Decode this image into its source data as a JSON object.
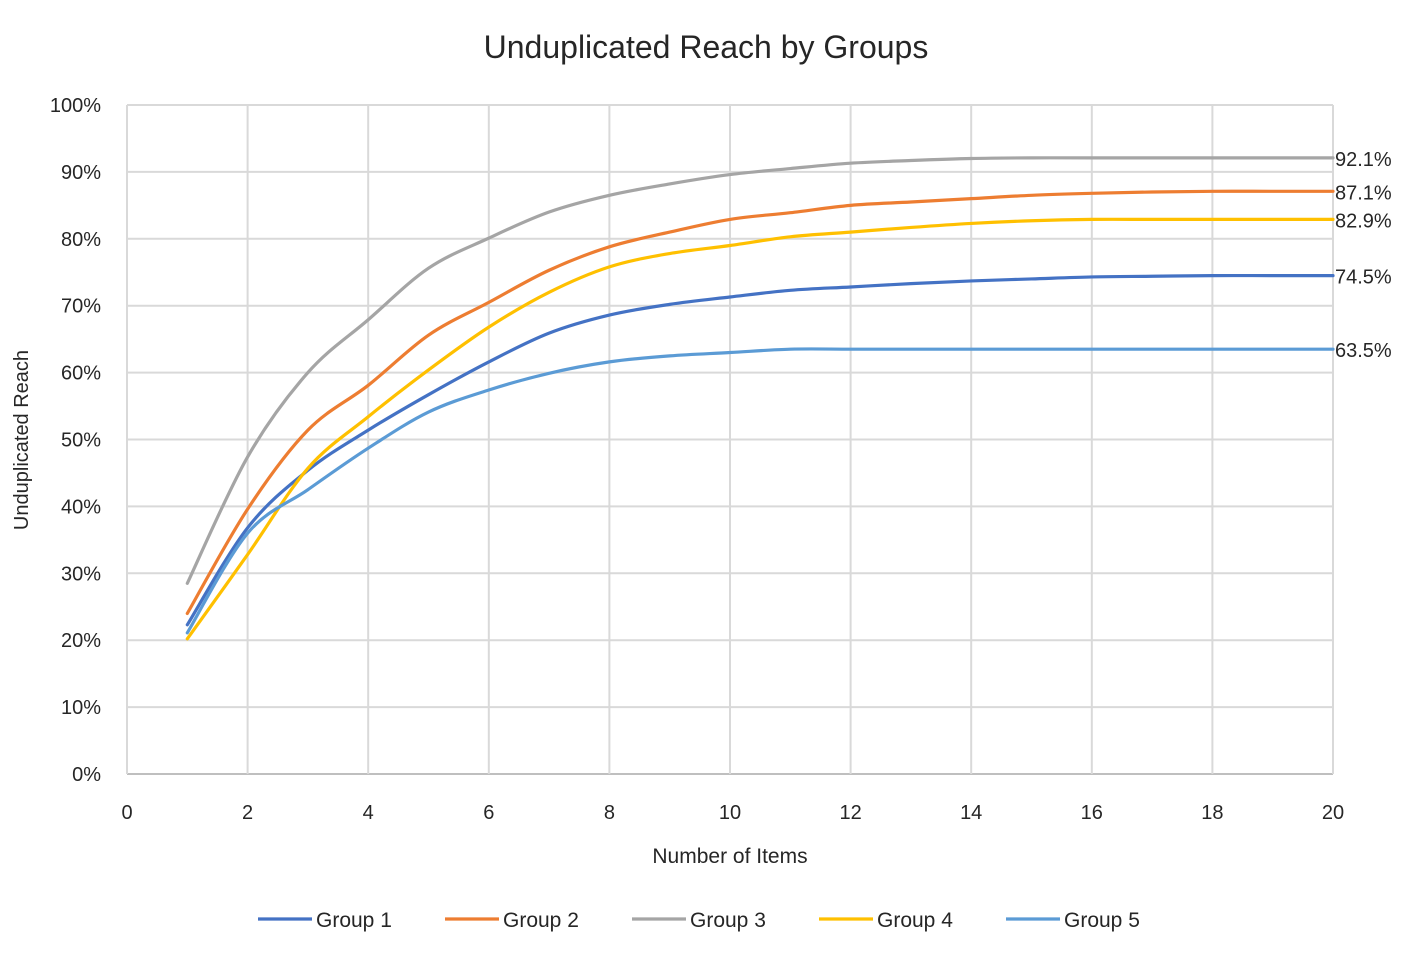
{
  "chart_data": {
    "type": "line",
    "title": "Unduplicated Reach by Groups",
    "xlabel": "Number of Items",
    "ylabel": "Unduplicated Reach",
    "xlim": [
      0,
      20
    ],
    "ylim": [
      0,
      100
    ],
    "x_ticks": [
      "0",
      "2",
      "4",
      "6",
      "8",
      "10",
      "12",
      "14",
      "16",
      "18",
      "20"
    ],
    "y_ticks": [
      "0%",
      "10%",
      "20%",
      "30%",
      "40%",
      "50%",
      "60%",
      "70%",
      "80%",
      "90%",
      "100%"
    ],
    "grid": true,
    "smooth": true,
    "legend_position": "bottom",
    "x": [
      1,
      2,
      3,
      4,
      5,
      6,
      7,
      8,
      9,
      10,
      11,
      12,
      13,
      14,
      15,
      16,
      17,
      18,
      19,
      20
    ],
    "series": [
      {
        "name": "Group 1",
        "color": "#4472C4",
        "end_label": "74.5%",
        "values": [
          22.3,
          36.8,
          45.4,
          51.4,
          56.7,
          61.6,
          65.9,
          68.6,
          70.2,
          71.3,
          72.3,
          72.8,
          73.3,
          73.7,
          74.0,
          74.3,
          74.4,
          74.5,
          74.5,
          74.5
        ]
      },
      {
        "name": "Group 2",
        "color": "#ED7D31",
        "end_label": "87.1%",
        "values": [
          24.0,
          39.6,
          51.4,
          58.1,
          65.6,
          70.5,
          75.3,
          78.8,
          81.0,
          82.9,
          83.9,
          85.0,
          85.5,
          86.0,
          86.5,
          86.8,
          87.0,
          87.1,
          87.1,
          87.1
        ]
      },
      {
        "name": "Group 3",
        "color": "#A5A5A5",
        "end_label": "92.1%",
        "values": [
          28.5,
          47.4,
          60.0,
          67.9,
          75.6,
          80.1,
          84.0,
          86.5,
          88.2,
          89.6,
          90.5,
          91.3,
          91.7,
          92.0,
          92.1,
          92.1,
          92.1,
          92.1,
          92.1,
          92.1
        ]
      },
      {
        "name": "Group 4",
        "color": "#FFC000",
        "end_label": "82.9%",
        "values": [
          20.2,
          32.8,
          45.7,
          53.4,
          60.4,
          66.8,
          72.0,
          75.8,
          77.8,
          79.0,
          80.3,
          81.0,
          81.7,
          82.3,
          82.7,
          82.9,
          82.9,
          82.9,
          82.9,
          82.9
        ]
      },
      {
        "name": "Group 5",
        "color": "#5B9BD5",
        "end_label": "63.5%",
        "values": [
          21.1,
          36.0,
          42.5,
          48.7,
          54.1,
          57.4,
          59.9,
          61.6,
          62.5,
          63.0,
          63.5,
          63.5,
          63.5,
          63.5,
          63.5,
          63.5,
          63.5,
          63.5,
          63.5,
          63.5
        ]
      }
    ]
  }
}
